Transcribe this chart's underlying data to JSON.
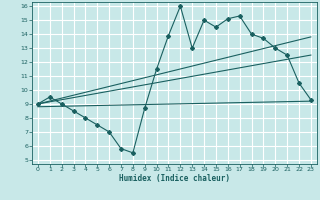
{
  "bg_color": "#c8e8e8",
  "line_color": "#1a6060",
  "grid_color": "#ffffff",
  "xlabel": "Humidex (Indice chaleur)",
  "xlim": [
    -0.5,
    23.5
  ],
  "ylim": [
    4.7,
    16.3
  ],
  "xticks": [
    0,
    1,
    2,
    3,
    4,
    5,
    6,
    7,
    8,
    9,
    10,
    11,
    12,
    13,
    14,
    15,
    16,
    17,
    18,
    19,
    20,
    21,
    22,
    23
  ],
  "yticks": [
    5,
    6,
    7,
    8,
    9,
    10,
    11,
    12,
    13,
    14,
    15,
    16
  ],
  "line1_x": [
    0,
    1,
    2,
    3,
    4,
    5,
    6,
    7,
    8,
    9,
    10,
    11,
    12,
    13,
    14,
    15,
    16,
    17,
    18,
    19,
    20,
    21,
    22,
    23
  ],
  "line1_y": [
    9.0,
    9.5,
    9.0,
    8.5,
    8.0,
    7.5,
    7.0,
    5.8,
    5.5,
    8.7,
    11.5,
    13.9,
    16.0,
    13.0,
    15.0,
    14.5,
    15.1,
    15.3,
    14.0,
    13.7,
    13.0,
    12.5,
    10.5,
    9.3
  ],
  "line2_x": [
    0,
    23
  ],
  "line2_y": [
    9.0,
    12.5
  ],
  "line3_x": [
    0,
    23
  ],
  "line3_y": [
    9.0,
    13.8
  ],
  "line4_x": [
    0,
    23
  ],
  "line4_y": [
    8.8,
    9.2
  ]
}
